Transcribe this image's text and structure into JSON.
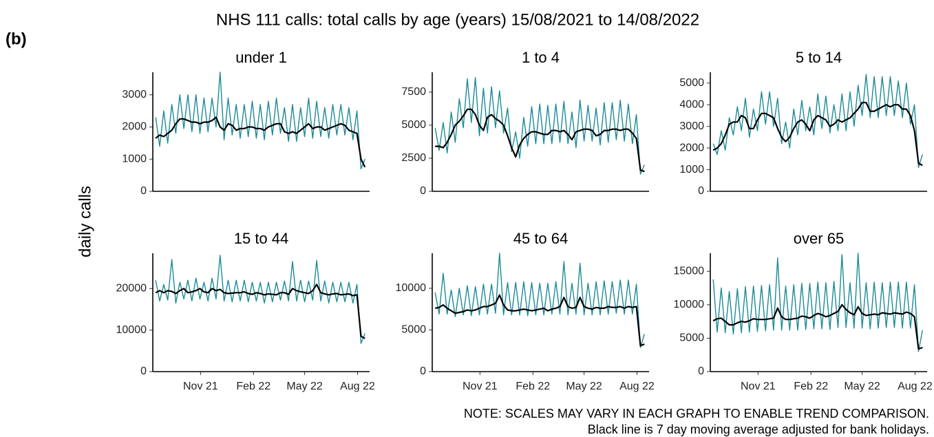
{
  "title": "NHS 111 calls: total calls by age (years) 15/08/2021 to 14/08/2022",
  "label": "(b)",
  "ylabel": "daily calls",
  "notes": [
    "NOTE: SCALES MAY VARY IN EACH GRAPH TO ENABLE TREND COMPARISON.",
    "Black line is 7 day moving average adjusted for bank holidays."
  ],
  "chart_data": [
    {
      "type": "line",
      "title": "under 1",
      "x": [
        0,
        7,
        14,
        21,
        28,
        35,
        42,
        49,
        56,
        63,
        70,
        77,
        84,
        91,
        98,
        105,
        112,
        119,
        126,
        133,
        140,
        147,
        154,
        161,
        168,
        175,
        182,
        189,
        196,
        203,
        210,
        217,
        224,
        231,
        238,
        245,
        252,
        259,
        266,
        273,
        280,
        287,
        294,
        301,
        308,
        315,
        322,
        329,
        336,
        343,
        350,
        357,
        364
      ],
      "xlim": [
        -5,
        372
      ],
      "ylim": [
        0,
        3700
      ],
      "yticks": [
        0,
        1000,
        2000,
        3000
      ],
      "series": [
        {
          "color": "#1a8a96",
          "values": [
            2300,
            1400,
            2500,
            1500,
            2700,
            1800,
            3000,
            1950,
            3000,
            1850,
            3000,
            1800,
            2900,
            1850,
            2900,
            2000,
            3700,
            1600,
            2900,
            1750,
            2700,
            1650,
            2700,
            1700,
            2800,
            1650,
            2700,
            1600,
            2800,
            1750,
            2900,
            1800,
            2600,
            1550,
            2700,
            1550,
            2600,
            1700,
            2900,
            1650,
            2800,
            1700,
            2600,
            1650,
            2700,
            1750,
            2700,
            1750,
            2600,
            1600,
            2500,
            700,
            1000
          ]
        },
        {
          "color": "#000000",
          "values": [
            1650,
            1750,
            1700,
            1800,
            1900,
            2100,
            2250,
            2250,
            2200,
            2150,
            2150,
            2100,
            2150,
            2150,
            2200,
            2300,
            2000,
            1900,
            2100,
            2050,
            1900,
            1950,
            1950,
            2000,
            2000,
            1950,
            1950,
            1900,
            2000,
            2050,
            2100,
            2100,
            1850,
            1800,
            1850,
            1800,
            1900,
            2000,
            2100,
            1950,
            2000,
            2000,
            1900,
            1950,
            2000,
            2050,
            2100,
            2050,
            1900,
            1850,
            1800,
            1000,
            750
          ]
        }
      ]
    },
    {
      "type": "line",
      "title": "1 to 4",
      "x": [
        0,
        7,
        14,
        21,
        28,
        35,
        42,
        49,
        56,
        63,
        70,
        77,
        84,
        91,
        98,
        105,
        112,
        119,
        126,
        133,
        140,
        147,
        154,
        161,
        168,
        175,
        182,
        189,
        196,
        203,
        210,
        217,
        224,
        231,
        238,
        245,
        252,
        259,
        266,
        273,
        280,
        287,
        294,
        301,
        308,
        315,
        322,
        329,
        336,
        343,
        350,
        357,
        364
      ],
      "xlim": [
        -5,
        372
      ],
      "ylim": [
        0,
        9000
      ],
      "yticks": [
        0,
        2500,
        5000,
        7500
      ],
      "series": [
        {
          "color": "#1a8a96",
          "values": [
            4800,
            3100,
            5200,
            2900,
            6000,
            3700,
            7000,
            4800,
            8500,
            5200,
            8600,
            4200,
            7800,
            4400,
            7900,
            4800,
            7600,
            4400,
            6300,
            3000,
            4500,
            2500,
            5600,
            3400,
            6400,
            3600,
            6600,
            3600,
            6500,
            3600,
            6600,
            3700,
            6800,
            3600,
            6000,
            3300,
            6900,
            3800,
            6500,
            3800,
            6300,
            3500,
            6700,
            3700,
            6700,
            3900,
            6900,
            3800,
            6600,
            3600,
            5800,
            1300,
            2000
          ]
        },
        {
          "color": "#000000",
          "values": [
            3400,
            3400,
            3300,
            3700,
            4300,
            5000,
            5300,
            5700,
            6200,
            6200,
            5800,
            5000,
            4600,
            5600,
            5800,
            5500,
            5300,
            5000,
            4200,
            3300,
            2600,
            3500,
            4000,
            4300,
            4500,
            4500,
            4400,
            4300,
            4300,
            4600,
            4600,
            4500,
            4600,
            4300,
            3900,
            4500,
            4600,
            4700,
            4700,
            4600,
            4200,
            4300,
            4600,
            4600,
            4700,
            4700,
            4600,
            4700,
            4700,
            4400,
            4000,
            1600,
            1500
          ]
        }
      ]
    },
    {
      "type": "line",
      "title": "5 to 14",
      "x": [
        0,
        7,
        14,
        21,
        28,
        35,
        42,
        49,
        56,
        63,
        70,
        77,
        84,
        91,
        98,
        105,
        112,
        119,
        126,
        133,
        140,
        147,
        154,
        161,
        168,
        175,
        182,
        189,
        196,
        203,
        210,
        217,
        224,
        231,
        238,
        245,
        252,
        259,
        266,
        273,
        280,
        287,
        294,
        301,
        308,
        315,
        322,
        329,
        336,
        343,
        350,
        357,
        364
      ],
      "xlim": [
        -5,
        372
      ],
      "ylim": [
        0,
        5500
      ],
      "yticks": [
        0,
        1000,
        2000,
        3000,
        4000,
        5000
      ],
      "series": [
        {
          "color": "#1a8a96",
          "values": [
            2200,
            1700,
            2800,
            1900,
            3400,
            2600,
            3900,
            2800,
            4300,
            2500,
            3800,
            2800,
            4600,
            3100,
            4600,
            3000,
            4300,
            2200,
            3200,
            2000,
            3800,
            2600,
            4200,
            2800,
            3900,
            2600,
            4500,
            2900,
            4400,
            2700,
            4000,
            2800,
            4500,
            2800,
            4600,
            3000,
            4900,
            3500,
            5400,
            3400,
            5300,
            3400,
            5300,
            3500,
            5300,
            3500,
            5100,
            3400,
            5000,
            3100,
            4000,
            1100,
            1700
          ]
        },
        {
          "color": "#000000",
          "values": [
            1900,
            2000,
            2200,
            2600,
            3100,
            3200,
            3200,
            3500,
            3400,
            2900,
            2900,
            3300,
            3600,
            3600,
            3500,
            3400,
            2900,
            2500,
            2300,
            2500,
            2900,
            3200,
            3300,
            3100,
            2800,
            3300,
            3500,
            3400,
            3300,
            3000,
            3100,
            3300,
            3200,
            3300,
            3400,
            3600,
            3800,
            4100,
            4100,
            3700,
            3700,
            3800,
            3900,
            4000,
            3900,
            4000,
            4000,
            3800,
            3800,
            3500,
            2800,
            1300,
            1200
          ]
        }
      ]
    },
    {
      "type": "line",
      "title": "15 to 44",
      "x": [
        0,
        7,
        14,
        21,
        28,
        35,
        42,
        49,
        56,
        63,
        70,
        77,
        84,
        91,
        98,
        105,
        112,
        119,
        126,
        133,
        140,
        147,
        154,
        161,
        168,
        175,
        182,
        189,
        196,
        203,
        210,
        217,
        224,
        231,
        238,
        245,
        252,
        259,
        266,
        273,
        280,
        287,
        294,
        301,
        308,
        315,
        322,
        329,
        336,
        343,
        350,
        357,
        364
      ],
      "xlim": [
        -5,
        372
      ],
      "ylim": [
        0,
        28500
      ],
      "yticks": [
        0,
        10000,
        20000
      ],
      "xticks": [
        {
          "value": 78,
          "label": "Nov 21"
        },
        {
          "value": 170,
          "label": "Feb 22"
        },
        {
          "value": 259,
          "label": "May 22"
        },
        {
          "value": 351,
          "label": "Aug 22"
        }
      ],
      "series": [
        {
          "color": "#1a8a96",
          "values": [
            22000,
            17000,
            21000,
            17200,
            27000,
            16500,
            21500,
            17500,
            22000,
            17000,
            22500,
            17500,
            21500,
            17000,
            22500,
            17500,
            28000,
            17000,
            22000,
            16800,
            22000,
            17000,
            22000,
            16800,
            21500,
            17000,
            21500,
            16500,
            21500,
            16800,
            21500,
            17200,
            21800,
            17000,
            26500,
            17000,
            22000,
            16800,
            21800,
            17200,
            26800,
            17000,
            21800,
            16500,
            21500,
            16800,
            21500,
            16800,
            21500,
            16500,
            21000,
            6800,
            9200
          ]
        },
        {
          "color": "#000000",
          "values": [
            19000,
            19500,
            19000,
            19500,
            19300,
            18800,
            19500,
            20000,
            19000,
            19200,
            19500,
            20000,
            19200,
            19000,
            20000,
            19500,
            19800,
            19000,
            18800,
            18900,
            19000,
            19000,
            19200,
            18800,
            18600,
            19000,
            18800,
            18500,
            18700,
            18600,
            18500,
            19000,
            19000,
            18600,
            20000,
            19500,
            19200,
            19000,
            18800,
            19500,
            21000,
            19000,
            18700,
            18500,
            18700,
            18800,
            18500,
            18600,
            18700,
            18300,
            18500,
            8500,
            8000
          ]
        }
      ]
    },
    {
      "type": "line",
      "title": "45 to 64",
      "x": [
        0,
        7,
        14,
        21,
        28,
        35,
        42,
        49,
        56,
        63,
        70,
        77,
        84,
        91,
        98,
        105,
        112,
        119,
        126,
        133,
        140,
        147,
        154,
        161,
        168,
        175,
        182,
        189,
        196,
        203,
        210,
        217,
        224,
        231,
        238,
        245,
        252,
        259,
        266,
        273,
        280,
        287,
        294,
        301,
        308,
        315,
        322,
        329,
        336,
        343,
        350,
        357,
        364
      ],
      "xlim": [
        -5,
        372
      ],
      "ylim": [
        0,
        14200
      ],
      "yticks": [
        0,
        5000,
        10000
      ],
      "xticks": [
        {
          "value": 78,
          "label": "Nov 21"
        },
        {
          "value": 170,
          "label": "Feb 22"
        },
        {
          "value": 259,
          "label": "May 22"
        },
        {
          "value": 351,
          "label": "Aug 22"
        }
      ],
      "series": [
        {
          "color": "#1a8a96",
          "values": [
            9500,
            6900,
            11800,
            6900,
            9800,
            6600,
            10000,
            6800,
            10300,
            6700,
            10200,
            6800,
            10500,
            6900,
            10500,
            7000,
            14200,
            6800,
            10700,
            6800,
            10700,
            6800,
            10800,
            6700,
            10700,
            6800,
            10600,
            6800,
            10600,
            6900,
            10800,
            6900,
            13200,
            6800,
            10600,
            6900,
            13000,
            6800,
            10600,
            6800,
            10800,
            6800,
            10900,
            6900,
            10800,
            7000,
            11000,
            6900,
            11000,
            6900,
            10500,
            2900,
            4500
          ]
        },
        {
          "color": "#000000",
          "values": [
            7600,
            7700,
            8000,
            7600,
            7300,
            7000,
            7100,
            7200,
            7400,
            7300,
            7400,
            7600,
            7800,
            7800,
            8000,
            8200,
            9200,
            8000,
            7400,
            7300,
            7300,
            7400,
            7500,
            7400,
            7300,
            7400,
            7500,
            7600,
            7300,
            7500,
            7600,
            7800,
            8900,
            7800,
            7600,
            7700,
            8900,
            7800,
            7600,
            7500,
            7700,
            7600,
            7600,
            7800,
            7700,
            7700,
            7800,
            7600,
            7800,
            7700,
            7800,
            3100,
            3300
          ]
        }
      ]
    },
    {
      "type": "line",
      "title": "over 65",
      "x": [
        0,
        7,
        14,
        21,
        28,
        35,
        42,
        49,
        56,
        63,
        70,
        77,
        84,
        91,
        98,
        105,
        112,
        119,
        126,
        133,
        140,
        147,
        154,
        161,
        168,
        175,
        182,
        189,
        196,
        203,
        210,
        217,
        224,
        231,
        238,
        245,
        252,
        259,
        266,
        273,
        280,
        287,
        294,
        301,
        308,
        315,
        322,
        329,
        336,
        343,
        350,
        357,
        364
      ],
      "xlim": [
        -5,
        372
      ],
      "ylim": [
        0,
        17700
      ],
      "yticks": [
        0,
        5000,
        10000,
        15000
      ],
      "xticks": [
        {
          "value": 78,
          "label": "Nov 21"
        },
        {
          "value": 170,
          "label": "Feb 22"
        },
        {
          "value": 259,
          "label": "May 22"
        },
        {
          "value": 351,
          "label": "Aug 22"
        }
      ],
      "series": [
        {
          "color": "#1a8a96",
          "values": [
            13800,
            5900,
            12500,
            5800,
            12000,
            5600,
            12400,
            5800,
            12700,
            5900,
            12800,
            6000,
            12900,
            6100,
            13000,
            6200,
            17000,
            6200,
            12800,
            6200,
            13000,
            6200,
            13200,
            6300,
            13200,
            6400,
            13400,
            6400,
            13300,
            6300,
            13500,
            6600,
            17500,
            6600,
            13300,
            6500,
            17700,
            6500,
            13300,
            6400,
            13400,
            6500,
            13300,
            6600,
            13400,
            6600,
            13400,
            6500,
            13400,
            6500,
            13000,
            3000,
            6200
          ]
        },
        {
          "color": "#000000",
          "values": [
            7600,
            7900,
            8000,
            7500,
            7000,
            7000,
            7300,
            7500,
            7400,
            7600,
            7900,
            7800,
            7800,
            7800,
            7900,
            8000,
            9500,
            8200,
            7800,
            7800,
            7900,
            8000,
            8300,
            8200,
            8000,
            8400,
            8700,
            8500,
            8200,
            8400,
            8700,
            9000,
            10000,
            9300,
            8800,
            8500,
            9700,
            8700,
            8400,
            8500,
            8600,
            8500,
            8800,
            8700,
            8600,
            8800,
            8700,
            8600,
            8900,
            8700,
            8200,
            3400,
            3600
          ]
        }
      ]
    }
  ]
}
